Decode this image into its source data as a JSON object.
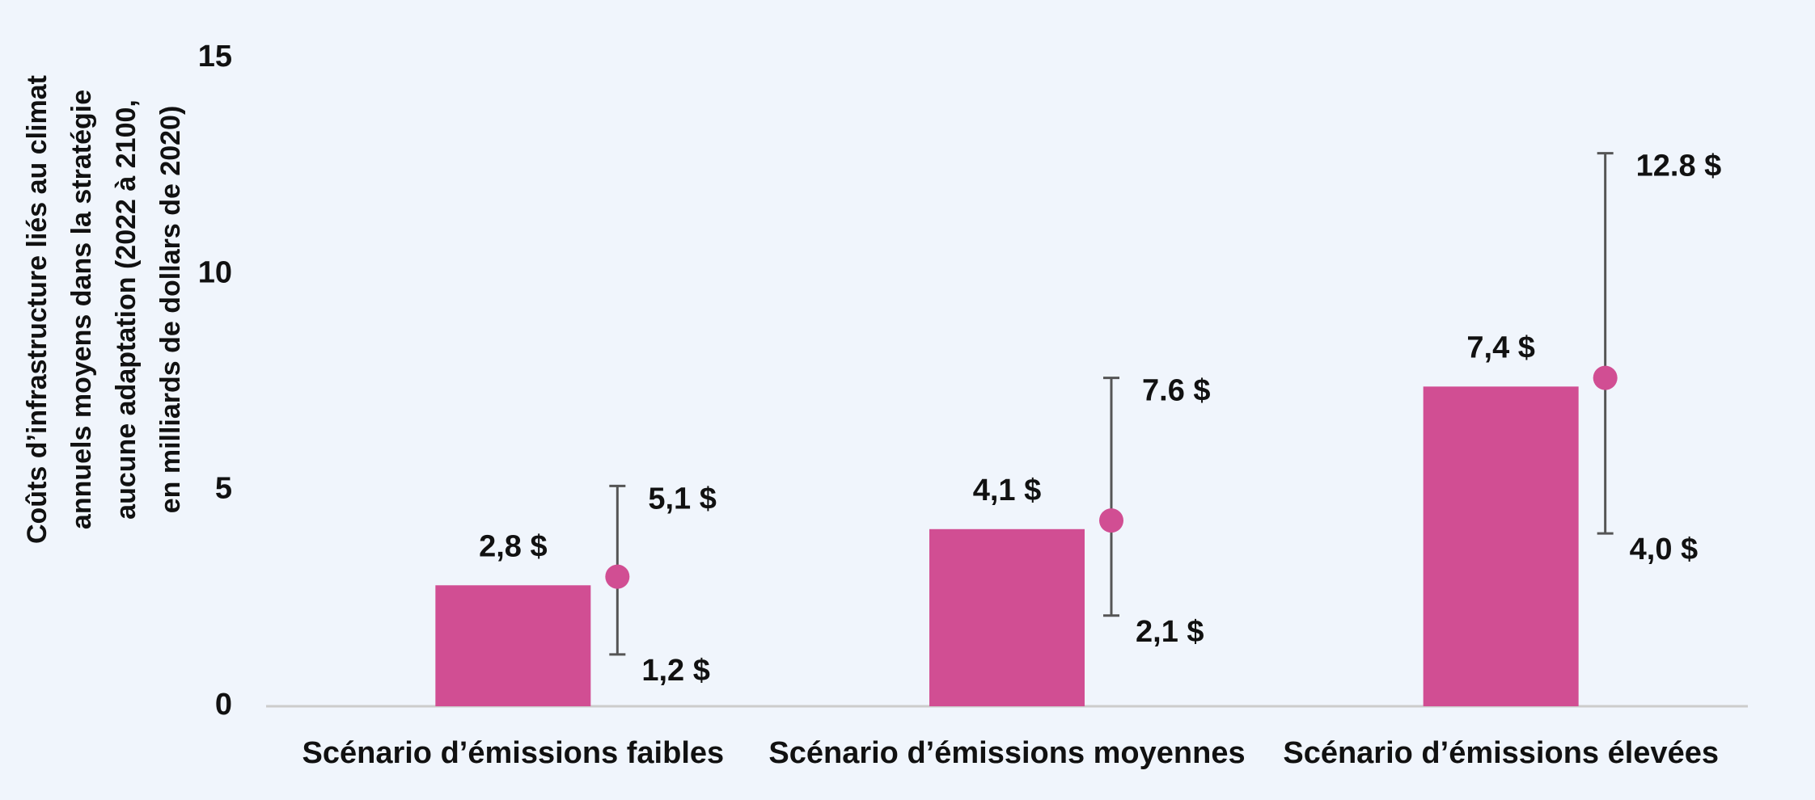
{
  "chart_data": {
    "type": "bar",
    "ylabel": [
      "Coûts d’infrastructure liés au climat",
      "annuels moyens dans la stratégie",
      "aucune adaptation (2022 à 2100,",
      "en milliards de dollars de 2020)"
    ],
    "categories": [
      "Scénario d’émissions faibles",
      "Scénario d’émissions moyennes",
      "Scénario d’émissions élevées"
    ],
    "values": [
      2.8,
      4.1,
      7.4
    ],
    "value_labels": [
      "2,8 $",
      "4,1 $",
      "7,4 $"
    ],
    "color": "#d14e93",
    "range": {
      "values": [
        3.0,
        4.3,
        7.6
      ],
      "low": [
        1.2,
        2.1,
        4.0
      ],
      "high": [
        5.1,
        7.6,
        12.8
      ],
      "low_labels": [
        "1,2 $",
        "2,1 $",
        "4,0 $"
      ],
      "high_labels": [
        "5,1 $",
        "7.6 $",
        "12.8 $"
      ],
      "color": "#d14e93",
      "whisker_color": "#555555"
    },
    "ylim": [
      0,
      15
    ],
    "yticks": [
      0,
      5,
      10,
      15
    ],
    "grid": false
  }
}
